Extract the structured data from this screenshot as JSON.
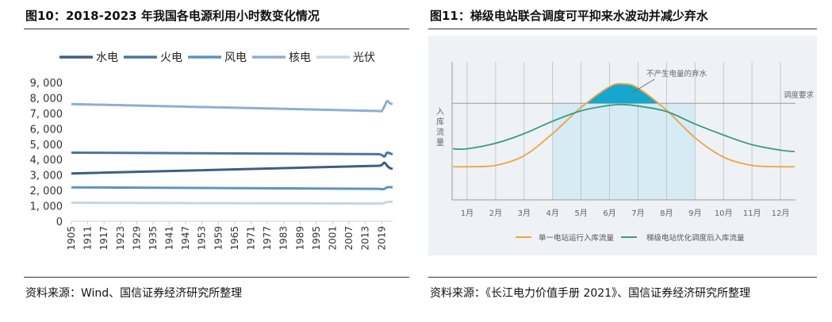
{
  "chart_data": [
    {
      "type": "line",
      "title": "图10：2018-2023 年我国各电源利用小时数变化情况",
      "source": "资料来源：Wind、国信证券经济研究所整理",
      "xlabel": "",
      "ylabel": "",
      "ylim": [
        0,
        9000
      ],
      "yticks": [
        "0",
        "1, 000",
        "2, 000",
        "3, 000",
        "4, 000",
        "5, 000",
        "6, 000",
        "7, 000",
        "8, 000",
        "9, 000"
      ],
      "xticks": [
        "1905",
        "1911",
        "1917",
        "1923",
        "1929",
        "1935",
        "1941",
        "1947",
        "1953",
        "1959",
        "1965",
        "1971",
        "1977",
        "1983",
        "1989",
        "1995",
        "2001",
        "2007",
        "2013",
        "2019"
      ],
      "xlim": [
        1905,
        2023
      ],
      "legend_position": "top",
      "grid": false,
      "x": [
        1905,
        2018,
        2019,
        2020,
        2021,
        2022,
        2023
      ],
      "series": [
        {
          "name": "水电",
          "color": "#3d5f82",
          "values": [
            3100,
            3600,
            3650,
            3800,
            3600,
            3450,
            3400
          ]
        },
        {
          "name": "火电",
          "color": "#4a75a3",
          "values": [
            4450,
            4350,
            4300,
            4200,
            4450,
            4400,
            4350
          ]
        },
        {
          "name": "风电",
          "color": "#5b93c7",
          "values": [
            2200,
            2100,
            2080,
            2100,
            2200,
            2220,
            2200
          ]
        },
        {
          "name": "核电",
          "color": "#8eaed3",
          "values": [
            7600,
            7150,
            7150,
            7450,
            7800,
            7650,
            7600
          ]
        },
        {
          "name": "光伏",
          "color": "#c5d5e8",
          "values": [
            1200,
            1150,
            1150,
            1200,
            1250,
            1260,
            1250
          ]
        }
      ]
    },
    {
      "type": "line",
      "title": "图11：梯级电站联合调度可平抑来水波动并减少弃水",
      "source": "资料来源：《长江电力价值手册 2021》、国信证券经济研究所整理",
      "ylabel": "入库流量",
      "xticks": [
        "1月",
        "2月",
        "3月",
        "4月",
        "5月",
        "6月",
        "7月",
        "8月",
        "9月",
        "10月",
        "11月",
        "12月"
      ],
      "reference_line": {
        "label": "调度要求",
        "value": 70
      },
      "annotation": "不产生电量的弃水",
      "shaded_range": [
        "4月",
        "9月"
      ],
      "legend_position": "bottom",
      "grid": true,
      "x": [
        0.5,
        1,
        2,
        3,
        4,
        5,
        6,
        6.5,
        7,
        8,
        9,
        10,
        11,
        12,
        12.5
      ],
      "series": [
        {
          "name": "单一电站运行入库流量",
          "color": "#f0a43c",
          "values": [
            24,
            24,
            25,
            32,
            48,
            67,
            82,
            84,
            81,
            65,
            45,
            31,
            25,
            24,
            24
          ]
        },
        {
          "name": "梯级电站优化调度后入库流量",
          "color": "#3a9a86",
          "values": [
            37,
            37,
            41,
            48,
            57,
            64.5,
            68.5,
            69,
            68,
            64,
            55,
            47,
            40,
            36,
            35
          ]
        }
      ],
      "colors": {
        "panel": "#eef2f6",
        "shade": "#d6ebf3",
        "spill": "#16a7cf"
      }
    }
  ]
}
